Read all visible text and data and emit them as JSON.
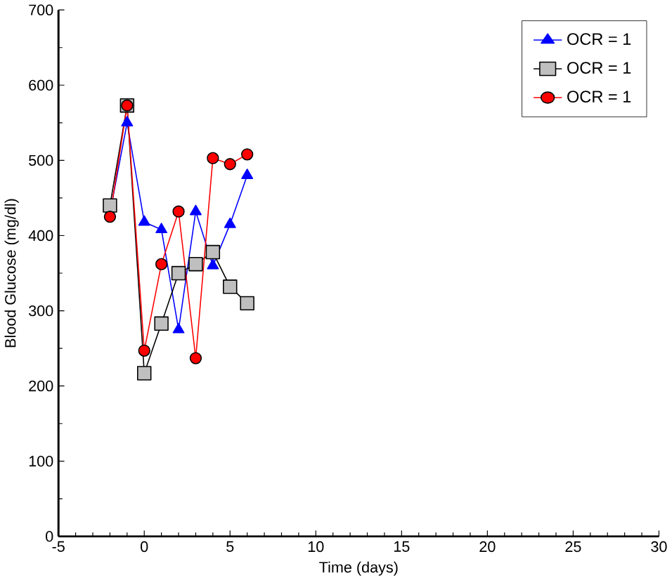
{
  "chart_data": {
    "type": "line",
    "xlabel": "Time (days)",
    "ylabel": "Blood Glucose (mg/dl)",
    "x": [
      -2,
      -1,
      0,
      1,
      2,
      3,
      4,
      5,
      6
    ],
    "series": [
      {
        "name": "OCR = 1",
        "color": "#0000ff",
        "marker": "triangle",
        "values": [
          430,
          550,
          418,
          408,
          275,
          432,
          360,
          415,
          480
        ]
      },
      {
        "name": "OCR = 1",
        "color": "#000000",
        "marker": "square",
        "values": [
          440,
          573,
          217,
          283,
          350,
          362,
          378,
          332,
          310
        ]
      },
      {
        "name": "OCR = 1",
        "color": "#ff0000",
        "marker": "circle",
        "values": [
          425,
          573,
          247,
          362,
          432,
          237,
          503,
          495,
          508
        ]
      }
    ],
    "xlim": [
      -5,
      30
    ],
    "xticks": [
      -5,
      0,
      5,
      10,
      15,
      20,
      25,
      30
    ],
    "ylim": [
      0,
      700
    ],
    "yticks": [
      0,
      100,
      200,
      300,
      400,
      500,
      600,
      700
    ],
    "grid": false,
    "legend": "top right",
    "line_style": "solid"
  }
}
